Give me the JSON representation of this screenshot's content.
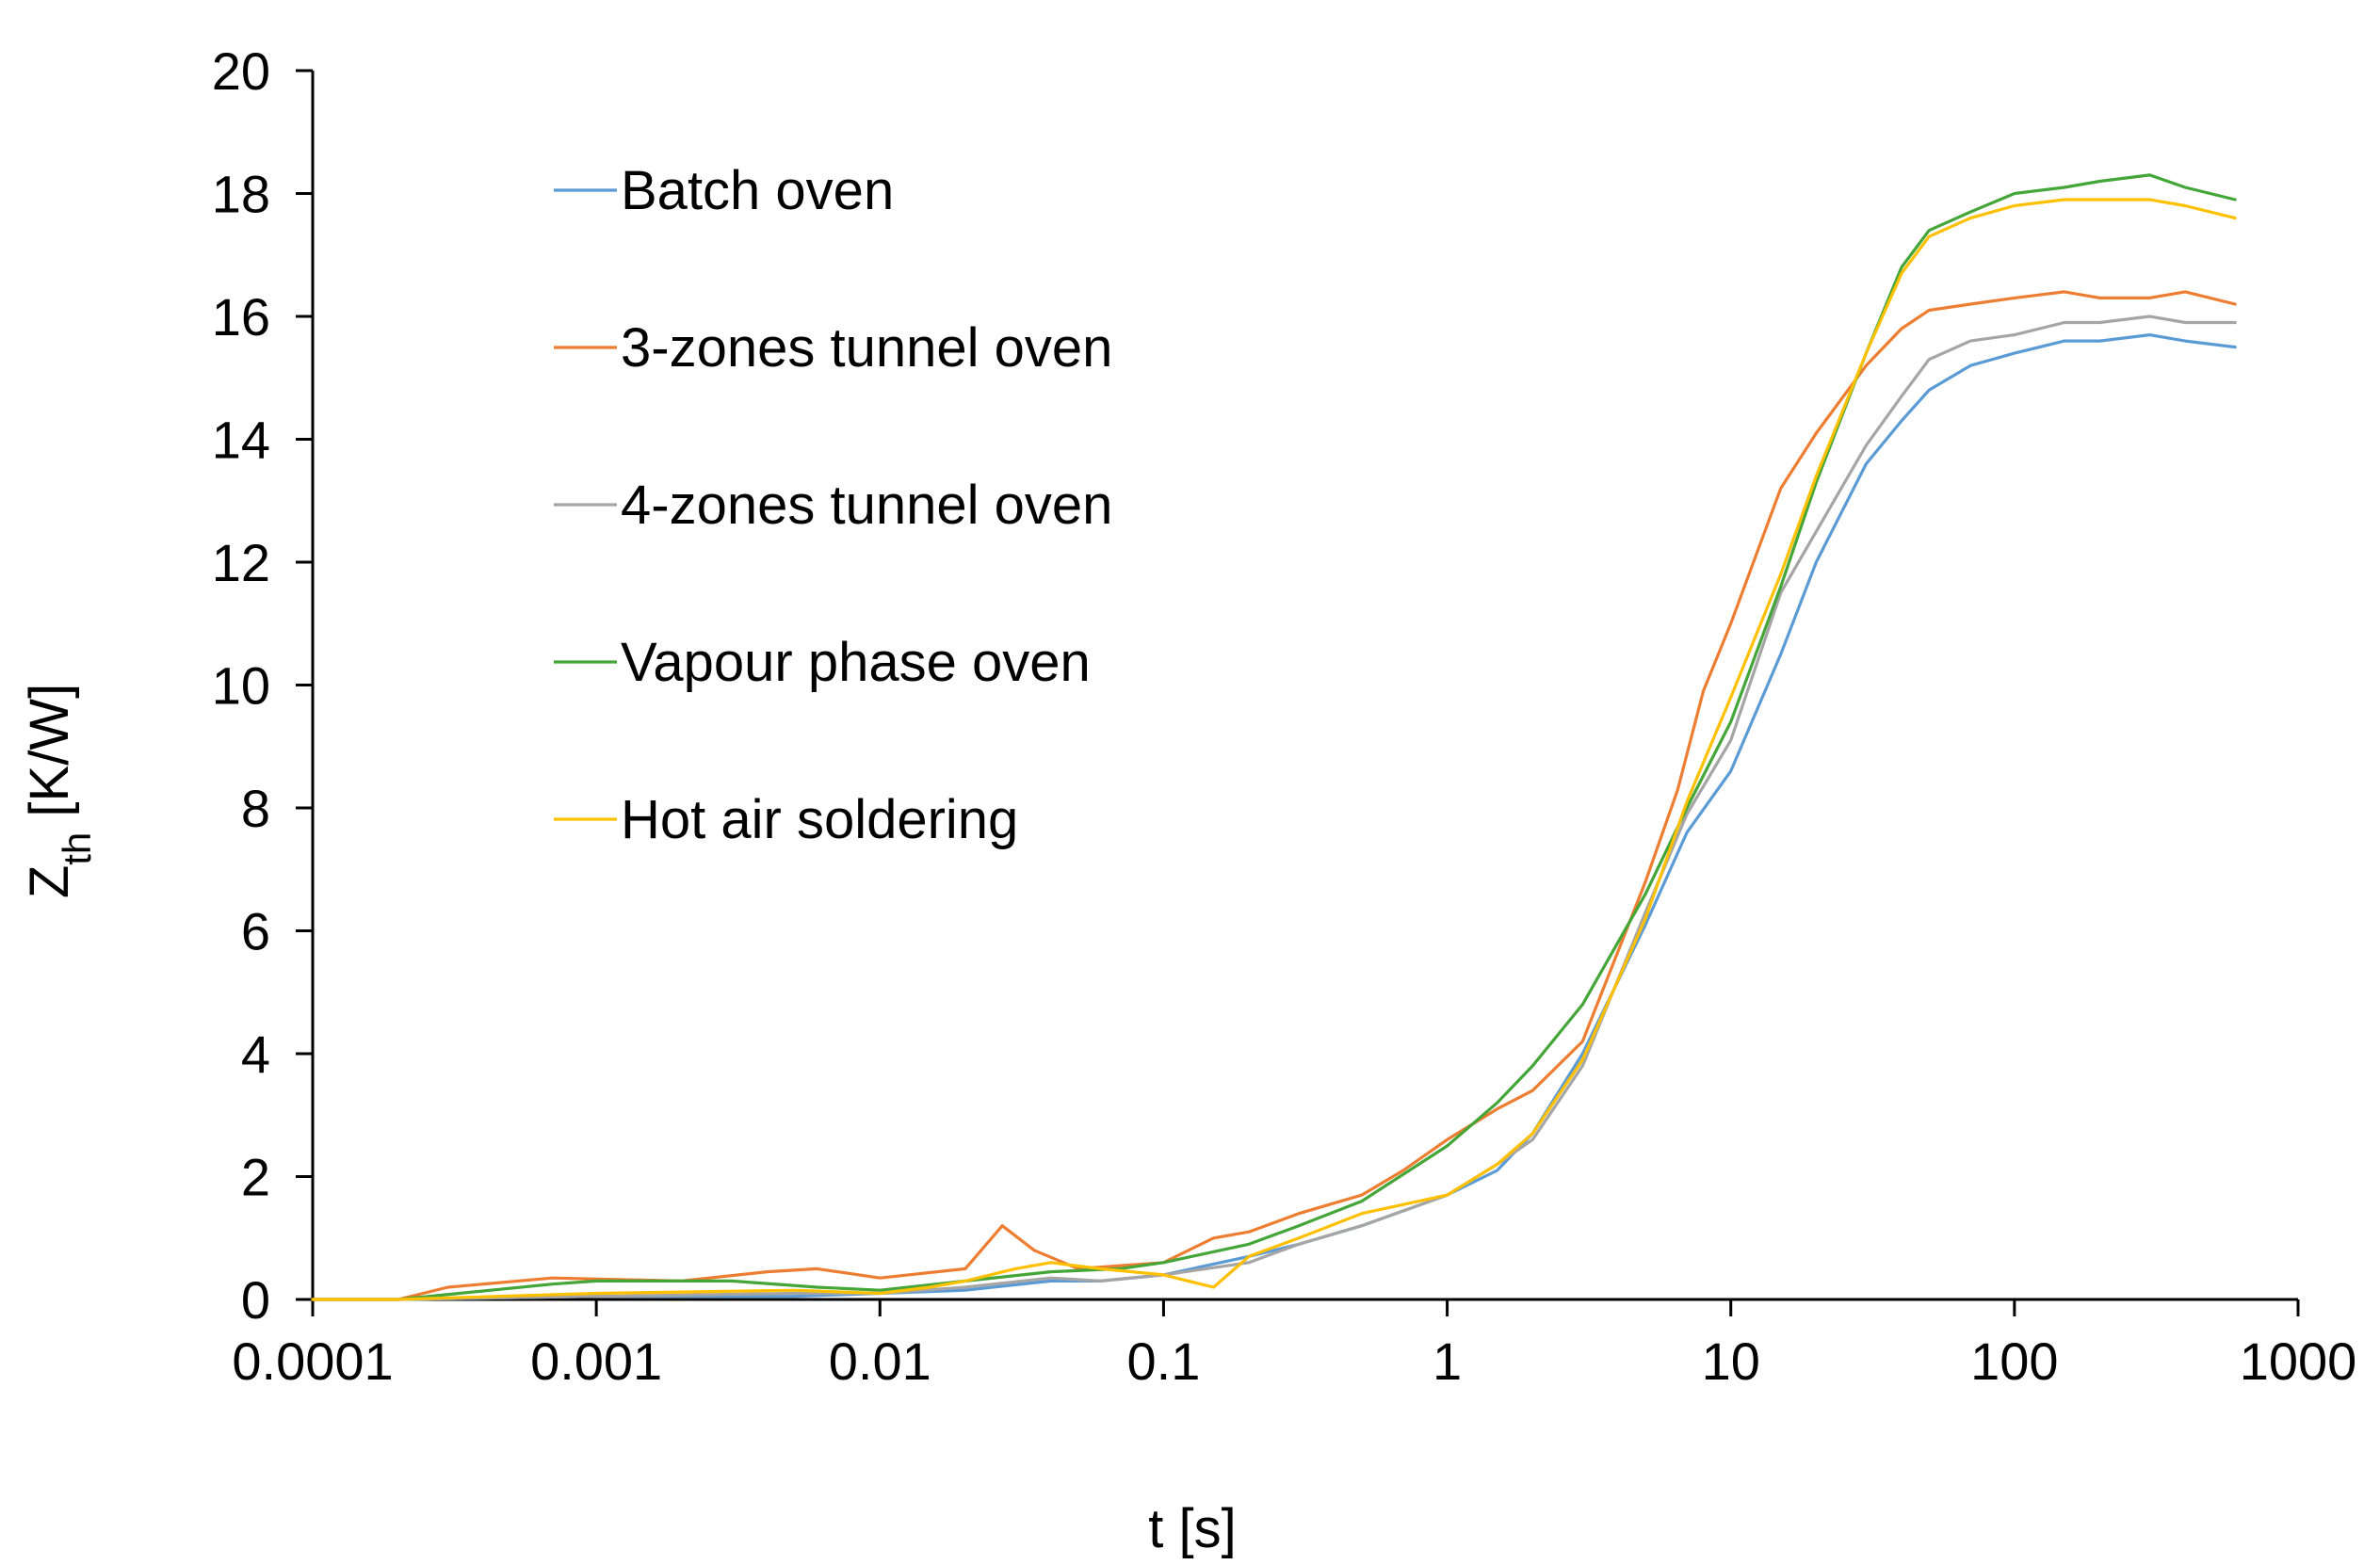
{
  "chart_data": {
    "type": "line",
    "title": "",
    "xlabel": "t [s]",
    "ylabel_main": "Z",
    "ylabel_sub": "th",
    "ylabel_unit": " [K/W]",
    "xscale": "log",
    "xlim": [
      0.0001,
      1000
    ],
    "ylim": [
      0,
      20
    ],
    "xticks": [
      0.0001,
      0.001,
      0.01,
      0.1,
      1,
      10,
      100,
      1000
    ],
    "xtick_labels": [
      "0.0001",
      "0.001",
      "0.01",
      "0.1",
      "1",
      "10",
      "100",
      "1000"
    ],
    "yticks": [
      0,
      2,
      4,
      6,
      8,
      10,
      12,
      14,
      16,
      18,
      20
    ],
    "ytick_labels": [
      "0",
      "2",
      "4",
      "6",
      "8",
      "10",
      "12",
      "14",
      "16",
      "18",
      "20"
    ],
    "grid": false,
    "legend_position": "upper-left",
    "series": [
      {
        "name": "Batch oven",
        "color": "#5B9BD5",
        "x": [
          0.0001,
          0.0002,
          0.001,
          0.005,
          0.01,
          0.02,
          0.04,
          0.06,
          0.1,
          0.2,
          0.3,
          0.5,
          1,
          1.5,
          2,
          3,
          5,
          7,
          10,
          15,
          20,
          30,
          40,
          50,
          70,
          100,
          150,
          200,
          300,
          400,
          600
        ],
        "y": [
          0,
          0,
          0.05,
          0.05,
          0.1,
          0.15,
          0.3,
          0.3,
          0.4,
          0.7,
          0.9,
          1.2,
          1.7,
          2.1,
          2.7,
          4.0,
          6.1,
          7.6,
          8.6,
          10.5,
          12.0,
          13.6,
          14.3,
          14.8,
          15.2,
          15.4,
          15.6,
          15.6,
          15.7,
          15.6,
          15.5
        ]
      },
      {
        "name": "3-zones tunnel oven",
        "color": "#ED7D31",
        "x": [
          0.0001,
          0.0002,
          0.0003,
          0.0007,
          0.002,
          0.004,
          0.006,
          0.01,
          0.02,
          0.027,
          0.035,
          0.05,
          0.1,
          0.15,
          0.2,
          0.3,
          0.5,
          0.7,
          1,
          1.5,
          2,
          3,
          5,
          6.5,
          8,
          10,
          15,
          20,
          30,
          40,
          50,
          70,
          100,
          150,
          200,
          300,
          400,
          600
        ],
        "y": [
          0,
          0,
          0.2,
          0.35,
          0.3,
          0.45,
          0.5,
          0.35,
          0.5,
          1.2,
          0.8,
          0.5,
          0.6,
          1.0,
          1.1,
          1.4,
          1.7,
          2.1,
          2.6,
          3.1,
          3.4,
          4.2,
          6.8,
          8.3,
          9.9,
          11.0,
          13.2,
          14.1,
          15.2,
          15.8,
          16.1,
          16.2,
          16.3,
          16.4,
          16.3,
          16.3,
          16.4,
          16.2
        ]
      },
      {
        "name": "4-zones tunnel oven",
        "color": "#A5A5A5",
        "x": [
          0.0001,
          0.0002,
          0.001,
          0.005,
          0.01,
          0.02,
          0.04,
          0.06,
          0.1,
          0.2,
          0.3,
          0.5,
          1,
          1.5,
          2,
          3,
          5,
          7,
          10,
          15,
          20,
          30,
          40,
          50,
          70,
          100,
          150,
          200,
          300,
          400,
          600
        ],
        "y": [
          0,
          0,
          0.05,
          0.1,
          0.1,
          0.2,
          0.35,
          0.3,
          0.4,
          0.6,
          0.9,
          1.2,
          1.7,
          2.2,
          2.6,
          3.8,
          6.3,
          7.9,
          9.1,
          11.5,
          12.5,
          13.9,
          14.7,
          15.3,
          15.6,
          15.7,
          15.9,
          15.9,
          16.0,
          15.9,
          15.9
        ]
      },
      {
        "name": "Vapour phase oven",
        "color": "#44A538",
        "x": [
          0.0001,
          0.0002,
          0.0007,
          0.001,
          0.003,
          0.006,
          0.01,
          0.02,
          0.04,
          0.07,
          0.1,
          0.2,
          0.3,
          0.5,
          1,
          1.5,
          2,
          3,
          5,
          7,
          10,
          15,
          20,
          30,
          40,
          50,
          70,
          100,
          150,
          200,
          300,
          400,
          600
        ],
        "y": [
          0,
          0,
          0.25,
          0.3,
          0.3,
          0.2,
          0.15,
          0.3,
          0.45,
          0.5,
          0.6,
          0.9,
          1.2,
          1.6,
          2.5,
          3.2,
          3.8,
          4.8,
          6.6,
          8.0,
          9.4,
          11.6,
          13.3,
          15.4,
          16.8,
          17.4,
          17.7,
          18.0,
          18.1,
          18.2,
          18.3,
          18.1,
          17.9
        ]
      },
      {
        "name": "Hot air soldering",
        "color": "#FFC000",
        "x": [
          0.0001,
          0.0002,
          0.001,
          0.005,
          0.01,
          0.015,
          0.02,
          0.03,
          0.04,
          0.06,
          0.1,
          0.15,
          0.2,
          0.3,
          0.5,
          1,
          1.5,
          2,
          3,
          5,
          7,
          10,
          15,
          20,
          30,
          40,
          50,
          70,
          100,
          150,
          200,
          300,
          400,
          600
        ],
        "y": [
          0,
          0,
          0.1,
          0.15,
          0.1,
          0.2,
          0.3,
          0.5,
          0.6,
          0.5,
          0.4,
          0.2,
          0.7,
          1.0,
          1.4,
          1.7,
          2.2,
          2.7,
          3.9,
          6.2,
          8.1,
          9.8,
          11.8,
          13.4,
          15.4,
          16.7,
          17.3,
          17.6,
          17.8,
          17.9,
          17.9,
          17.9,
          17.8,
          17.6
        ]
      }
    ]
  }
}
